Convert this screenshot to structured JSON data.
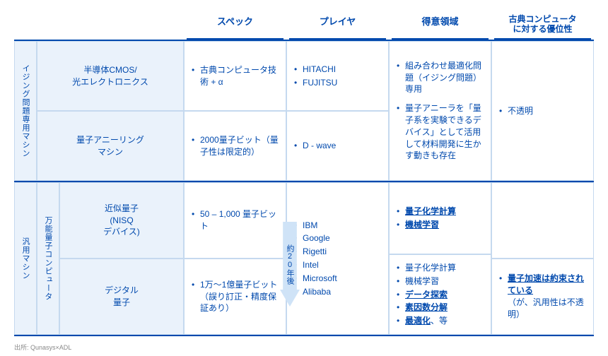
{
  "colors": {
    "accent": "#0049ad",
    "cell_bg": "#eaf2fb",
    "border": "#c5d9ef",
    "bg": "#ffffff"
  },
  "headers": {
    "spec": "スペック",
    "player": "プレイヤ",
    "domain": "得意領域",
    "advantage_l1": "古典コンピュータ",
    "advantage_l2": "に対する優位性"
  },
  "left": {
    "sec1": "イジング問題専用マシン",
    "sec2": "汎用マシン",
    "sec2b": "万能量子コンピュータ",
    "r1": "半導体CMOS/\n光エレクトロニクス",
    "r2": "量子アニーリング\nマシン",
    "r3": "近似量子\n(NISQ\nデバイス)",
    "r4": "デジタル\n量子"
  },
  "spec": {
    "r1": "古典コンピュータ技術 + α",
    "r2": "2000量子ビット（量子性は限定的）",
    "r3": "50 – 1,000 量子ビット",
    "r4": "1万～1億量子ビット（誤り訂正・精度保証あり）"
  },
  "player": {
    "r1a": "HITACHI",
    "r1b": "FUJITSU",
    "r2": "D - wave",
    "r3a": "IBM",
    "r3b": "Google",
    "r3c": "Rigetti",
    "r3d": "Intel",
    "r3e": "Microsoft",
    "r3f": "Alibaba"
  },
  "domain": {
    "r1a": "組み合わせ最適化問題（イジング問題）専用",
    "r1b": "量子アニーラを「量子系を実験できるデバイス」として活用して材料開発に生かす動きも存在",
    "r3a": "量子化学計算",
    "r3b": "機械学習",
    "r4a": "量子化学計算",
    "r4b": "機械学習",
    "r4c": "データ探索",
    "r4d": "素因数分解",
    "r4e": "最適化",
    "r4e_suffix": "、等"
  },
  "adv": {
    "r12": "不透明",
    "r4a": "量子加速は約束されている",
    "r4b": "（が、汎用性は不透明）"
  },
  "arrow": "約20年後",
  "footer": "出所: Qunasys×ADL"
}
